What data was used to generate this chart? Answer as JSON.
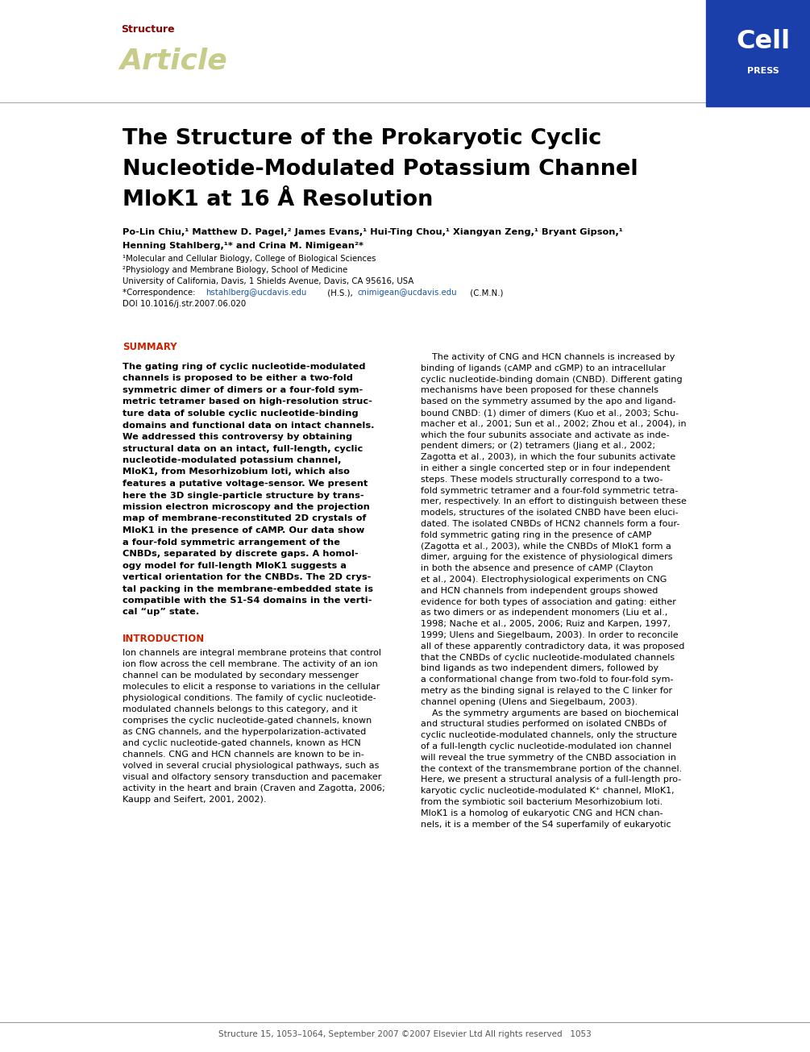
{
  "page_width": 10.05,
  "page_height": 13.05,
  "bg_color": "#ffffff",
  "header_bar_color": "#1a3faa",
  "structure_label": "Structure",
  "structure_color": "#8b0000",
  "article_label": "Article",
  "article_color": "#c8cc8a",
  "title_line1": "The Structure of the Prokaryotic Cyclic",
  "title_line2": "Nucleotide-Modulated Potassium Channel",
  "title_line3": "MloK1 at 16 Å Resolution",
  "title_color": "#000000",
  "authors": "Po-Lin Chiu,¹ Matthew D. Pagel,² James Evans,¹ Hui-Ting Chou,¹ Xiangyan Zeng,¹ Bryant Gipson,¹",
  "authors2": "Henning Stahlberg,¹* and Crina M. Nimigean²*",
  "affil1": "¹Molecular and Cellular Biology, College of Biological Sciences",
  "affil2": "²Physiology and Membrane Biology, School of Medicine",
  "affil3": "University of California, Davis, 1 Shields Avenue, Davis, CA 95616, USA",
  "correspondence_pre": "*Correspondence: ",
  "email1": "hstahlberg@ucdavis.edu",
  "email2": "cnimigean@ucdavis.edu",
  "doi": "DOI 10.1016/j.str.2007.06.020",
  "email_color": "#1a56a0",
  "summary_label": "SUMMARY",
  "summary_color": "#cc2200",
  "summary_text": "The gating ring of cyclic nucleotide-modulated\nchannels is proposed to be either a two-fold\nsymmetric dimer of dimers or a four-fold sym-\nmetric tetramer based on high-resolution struc-\nture data of soluble cyclic nucleotide-binding\ndomains and functional data on intact channels.\nWe addressed this controversy by obtaining\nstructural data on an intact, full-length, cyclic\nnucleotide-modulated potassium channel,\nMloK1, from Mesorhizobium loti, which also\nfeatures a putative voltage-sensor. We present\nhere the 3D single-particle structure by trans-\nmission electron microscopy and the projection\nmap of membrane-reconstituted 2D crystals of\nMloK1 in the presence of cAMP. Our data show\na four-fold symmetric arrangement of the\nCNBDs, separated by discrete gaps. A homol-\nogy model for full-length MloK1 suggests a\nvertical orientation for the CNBDs. The 2D crys-\ntal packing in the membrane-embedded state is\ncompatible with the S1-S4 domains in the verti-\ncal “up” state.",
  "intro_label": "INTRODUCTION",
  "intro_color": "#cc2200",
  "intro_text": "Ion channels are integral membrane proteins that control\nion flow across the cell membrane. The activity of an ion\nchannel can be modulated by secondary messenger\nmolecules to elicit a response to variations in the cellular\nphysiological conditions. The family of cyclic nucleotide-\nmodulated channels belongs to this category, and it\ncomprises the cyclic nucleotide-gated channels, known\nas CNG channels, and the hyperpolarization-activated\nand cyclic nucleotide-gated channels, known as HCN\nchannels. CNG and HCN channels are known to be in-\nvolved in several crucial physiological pathways, such as\nvisual and olfactory sensory transduction and pacemaker\nactivity in the heart and brain (Craven and Zagotta, 2006;\nKaupp and Seifert, 2001, 2002).",
  "right_col_text": "    The activity of CNG and HCN channels is increased by\nbinding of ligands (cAMP and cGMP) to an intracellular\ncyclic nucleotide-binding domain (CNBD). Different gating\nmechanisms have been proposed for these channels\nbased on the symmetry assumed by the apo and ligand-\nbound CNBD: (1) dimer of dimers (Kuo et al., 2003; Schu-\nmacher et al., 2001; Sun et al., 2002; Zhou et al., 2004), in\nwhich the four subunits associate and activate as inde-\npendent dimers; or (2) tetramers (Jiang et al., 2002;\nZagotta et al., 2003), in which the four subunits activate\nin either a single concerted step or in four independent\nsteps. These models structurally correspond to a two-\nfold symmetric tetramer and a four-fold symmetric tetra-\nmer, respectively. In an effort to distinguish between these\nmodels, structures of the isolated CNBD have been eluci-\ndated. The isolated CNBDs of HCN2 channels form a four-\nfold symmetric gating ring in the presence of cAMP\n(Zagotta et al., 2003), while the CNBDs of MloK1 form a\ndimer, arguing for the existence of physiological dimers\nin both the absence and presence of cAMP (Clayton\net al., 2004). Electrophysiological experiments on CNG\nand HCN channels from independent groups showed\nevidence for both types of association and gating: either\nas two dimers or as independent monomers (Liu et al.,\n1998; Nache et al., 2005, 2006; Ruiz and Karpen, 1997,\n1999; Ulens and Siegelbaum, 2003). In order to reconcile\nall of these apparently contradictory data, it was proposed\nthat the CNBDs of cyclic nucleotide-modulated channels\nbind ligands as two independent dimers, followed by\na conformational change from two-fold to four-fold sym-\nmetry as the binding signal is relayed to the C linker for\nchannel opening (Ulens and Siegelbaum, 2003).\n    As the symmetry arguments are based on biochemical\nand structural studies performed on isolated CNBDs of\ncyclic nucleotide-modulated channels, only the structure\nof a full-length cyclic nucleotide-modulated ion channel\nwill reveal the true symmetry of the CNBD association in\nthe context of the transmembrane portion of the channel.\nHere, we present a structural analysis of a full-length pro-\nkaryotic cyclic nucleotide-modulated K⁺ channel, MloK1,\nfrom the symbiotic soil bacterium Mesorhizobium loti.\nMloK1 is a homolog of eukaryotic CNG and HCN chan-\nnels, it is a member of the S4 superfamily of eukaryotic",
  "footer_text": "Structure 15, 1053–1064, September 2007 ©2007 Elsevier Ltd All rights reserved   1053",
  "footer_color": "#555555"
}
